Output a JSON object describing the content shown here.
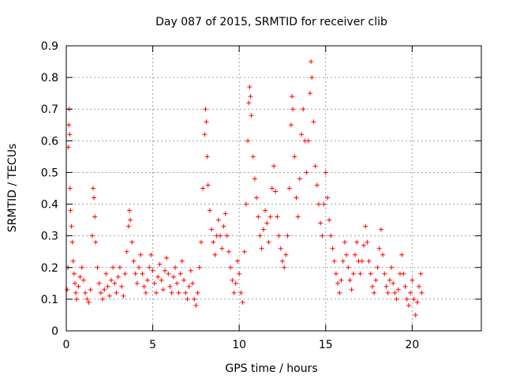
{
  "chart_data": {
    "type": "scatter",
    "title": "Day 087 of 2015, SRMTID for receiver clib",
    "xlabel": "GPS time / hours",
    "ylabel": "SRMTID / TECUs",
    "xlim": [
      0,
      24
    ],
    "ylim": [
      0,
      0.9
    ],
    "xticks": [
      0,
      5,
      10,
      15,
      20
    ],
    "xtick_labels": [
      "0",
      "5",
      "10",
      "15",
      "20"
    ],
    "yticks": [
      0,
      0.1,
      0.2,
      0.3,
      0.4,
      0.5,
      0.6,
      0.7,
      0.8,
      0.9
    ],
    "ytick_labels": [
      "0",
      "0.1",
      "0.2",
      "0.3",
      "0.4",
      "0.5",
      "0.6",
      "0.7",
      "0.8",
      "0.9"
    ],
    "grid": true,
    "marker": "+",
    "marker_color": "#ff0000",
    "series": [
      {
        "name": "SRMTID",
        "points": [
          [
            0.05,
            0.13
          ],
          [
            0.1,
            0.2
          ],
          [
            0.12,
            0.58
          ],
          [
            0.15,
            0.65
          ],
          [
            0.17,
            0.7
          ],
          [
            0.2,
            0.62
          ],
          [
            0.22,
            0.45
          ],
          [
            0.25,
            0.38
          ],
          [
            0.3,
            0.33
          ],
          [
            0.35,
            0.28
          ],
          [
            0.4,
            0.22
          ],
          [
            0.45,
            0.18
          ],
          [
            0.5,
            0.15
          ],
          [
            0.55,
            0.12
          ],
          [
            0.6,
            0.1
          ],
          [
            0.7,
            0.14
          ],
          [
            0.8,
            0.17
          ],
          [
            0.9,
            0.2
          ],
          [
            1.0,
            0.16
          ],
          [
            1.1,
            0.12
          ],
          [
            1.2,
            0.1
          ],
          [
            1.3,
            0.09
          ],
          [
            1.4,
            0.13
          ],
          [
            1.5,
            0.3
          ],
          [
            1.55,
            0.45
          ],
          [
            1.6,
            0.42
          ],
          [
            1.65,
            0.36
          ],
          [
            1.7,
            0.28
          ],
          [
            1.8,
            0.2
          ],
          [
            1.9,
            0.15
          ],
          [
            2.0,
            0.12
          ],
          [
            2.1,
            0.1
          ],
          [
            2.2,
            0.13
          ],
          [
            2.3,
            0.18
          ],
          [
            2.4,
            0.14
          ],
          [
            2.5,
            0.11
          ],
          [
            2.6,
            0.16
          ],
          [
            2.7,
            0.2
          ],
          [
            2.8,
            0.15
          ],
          [
            2.9,
            0.12
          ],
          [
            3.0,
            0.17
          ],
          [
            3.1,
            0.2
          ],
          [
            3.2,
            0.14
          ],
          [
            3.3,
            0.11
          ],
          [
            3.4,
            0.18
          ],
          [
            3.5,
            0.25
          ],
          [
            3.6,
            0.33
          ],
          [
            3.65,
            0.38
          ],
          [
            3.7,
            0.35
          ],
          [
            3.8,
            0.28
          ],
          [
            3.9,
            0.22
          ],
          [
            4.0,
            0.18
          ],
          [
            4.1,
            0.15
          ],
          [
            4.2,
            0.2
          ],
          [
            4.3,
            0.24
          ],
          [
            4.4,
            0.18
          ],
          [
            4.5,
            0.14
          ],
          [
            4.6,
            0.12
          ],
          [
            4.7,
            0.16
          ],
          [
            4.8,
            0.2
          ],
          [
            4.9,
            0.24
          ],
          [
            5.0,
            0.19
          ],
          [
            5.1,
            0.15
          ],
          [
            5.2,
            0.12
          ],
          [
            5.3,
            0.17
          ],
          [
            5.4,
            0.21
          ],
          [
            5.5,
            0.16
          ],
          [
            5.6,
            0.13
          ],
          [
            5.7,
            0.19
          ],
          [
            5.8,
            0.23
          ],
          [
            5.9,
            0.18
          ],
          [
            6.0,
            0.14
          ],
          [
            6.1,
            0.12
          ],
          [
            6.2,
            0.17
          ],
          [
            6.3,
            0.2
          ],
          [
            6.4,
            0.15
          ],
          [
            6.5,
            0.12
          ],
          [
            6.6,
            0.18
          ],
          [
            6.7,
            0.22
          ],
          [
            6.8,
            0.16
          ],
          [
            6.9,
            0.12
          ],
          [
            7.0,
            0.1
          ],
          [
            7.1,
            0.14
          ],
          [
            7.2,
            0.19
          ],
          [
            7.3,
            0.15
          ],
          [
            7.4,
            0.1
          ],
          [
            7.5,
            0.08
          ],
          [
            7.6,
            0.12
          ],
          [
            7.7,
            0.2
          ],
          [
            7.8,
            0.28
          ],
          [
            7.9,
            0.45
          ],
          [
            8.0,
            0.62
          ],
          [
            8.05,
            0.7
          ],
          [
            8.1,
            0.66
          ],
          [
            8.15,
            0.55
          ],
          [
            8.2,
            0.46
          ],
          [
            8.3,
            0.38
          ],
          [
            8.4,
            0.32
          ],
          [
            8.5,
            0.28
          ],
          [
            8.6,
            0.24
          ],
          [
            8.7,
            0.3
          ],
          [
            8.8,
            0.35
          ],
          [
            8.9,
            0.3
          ],
          [
            9.0,
            0.26
          ],
          [
            9.1,
            0.33
          ],
          [
            9.2,
            0.37
          ],
          [
            9.3,
            0.3
          ],
          [
            9.4,
            0.25
          ],
          [
            9.5,
            0.2
          ],
          [
            9.6,
            0.16
          ],
          [
            9.7,
            0.12
          ],
          [
            9.8,
            0.15
          ],
          [
            9.9,
            0.22
          ],
          [
            10.0,
            0.18
          ],
          [
            10.1,
            0.12
          ],
          [
            10.2,
            0.09
          ],
          [
            10.3,
            0.25
          ],
          [
            10.4,
            0.4
          ],
          [
            10.5,
            0.6
          ],
          [
            10.55,
            0.72
          ],
          [
            10.6,
            0.77
          ],
          [
            10.65,
            0.74
          ],
          [
            10.7,
            0.68
          ],
          [
            10.8,
            0.55
          ],
          [
            10.9,
            0.48
          ],
          [
            11.0,
            0.42
          ],
          [
            11.1,
            0.36
          ],
          [
            11.2,
            0.3
          ],
          [
            11.3,
            0.26
          ],
          [
            11.4,
            0.32
          ],
          [
            11.5,
            0.38
          ],
          [
            11.6,
            0.34
          ],
          [
            11.7,
            0.28
          ],
          [
            11.8,
            0.36
          ],
          [
            11.9,
            0.45
          ],
          [
            12.0,
            0.52
          ],
          [
            12.1,
            0.44
          ],
          [
            12.2,
            0.36
          ],
          [
            12.3,
            0.3
          ],
          [
            12.4,
            0.26
          ],
          [
            12.5,
            0.22
          ],
          [
            12.6,
            0.2
          ],
          [
            12.7,
            0.24
          ],
          [
            12.8,
            0.3
          ],
          [
            12.9,
            0.45
          ],
          [
            13.0,
            0.65
          ],
          [
            13.05,
            0.74
          ],
          [
            13.1,
            0.7
          ],
          [
            13.2,
            0.55
          ],
          [
            13.3,
            0.42
          ],
          [
            13.4,
            0.36
          ],
          [
            13.5,
            0.48
          ],
          [
            13.6,
            0.62
          ],
          [
            13.7,
            0.7
          ],
          [
            13.8,
            0.6
          ],
          [
            13.9,
            0.5
          ],
          [
            14.0,
            0.6
          ],
          [
            14.1,
            0.75
          ],
          [
            14.15,
            0.85
          ],
          [
            14.2,
            0.8
          ],
          [
            14.3,
            0.66
          ],
          [
            14.4,
            0.52
          ],
          [
            14.5,
            0.46
          ],
          [
            14.6,
            0.4
          ],
          [
            14.7,
            0.34
          ],
          [
            14.8,
            0.3
          ],
          [
            14.9,
            0.4
          ],
          [
            15.0,
            0.5
          ],
          [
            15.1,
            0.42
          ],
          [
            15.2,
            0.35
          ],
          [
            15.3,
            0.3
          ],
          [
            15.4,
            0.26
          ],
          [
            15.5,
            0.22
          ],
          [
            15.6,
            0.18
          ],
          [
            15.7,
            0.15
          ],
          [
            15.8,
            0.12
          ],
          [
            15.9,
            0.16
          ],
          [
            16.0,
            0.22
          ],
          [
            16.1,
            0.28
          ],
          [
            16.2,
            0.24
          ],
          [
            16.3,
            0.2
          ],
          [
            16.4,
            0.16
          ],
          [
            16.5,
            0.13
          ],
          [
            16.6,
            0.18
          ],
          [
            16.7,
            0.24
          ],
          [
            16.8,
            0.28
          ],
          [
            16.9,
            0.22
          ],
          [
            17.0,
            0.18
          ],
          [
            17.1,
            0.22
          ],
          [
            17.2,
            0.27
          ],
          [
            17.3,
            0.33
          ],
          [
            17.4,
            0.28
          ],
          [
            17.5,
            0.22
          ],
          [
            17.6,
            0.18
          ],
          [
            17.7,
            0.14
          ],
          [
            17.8,
            0.12
          ],
          [
            17.9,
            0.16
          ],
          [
            18.0,
            0.2
          ],
          [
            18.1,
            0.26
          ],
          [
            18.2,
            0.32
          ],
          [
            18.3,
            0.24
          ],
          [
            18.4,
            0.18
          ],
          [
            18.5,
            0.14
          ],
          [
            18.6,
            0.12
          ],
          [
            18.7,
            0.16
          ],
          [
            18.8,
            0.2
          ],
          [
            18.9,
            0.15
          ],
          [
            19.0,
            0.12
          ],
          [
            19.1,
            0.1
          ],
          [
            19.2,
            0.13
          ],
          [
            19.3,
            0.18
          ],
          [
            19.4,
            0.24
          ],
          [
            19.5,
            0.18
          ],
          [
            19.6,
            0.14
          ],
          [
            19.7,
            0.1
          ],
          [
            19.8,
            0.08
          ],
          [
            19.9,
            0.12
          ],
          [
            20.0,
            0.16
          ],
          [
            20.1,
            0.1
          ],
          [
            20.2,
            0.05
          ],
          [
            20.3,
            0.09
          ],
          [
            20.4,
            0.14
          ],
          [
            20.5,
            0.18
          ],
          [
            20.55,
            0.12
          ]
        ]
      }
    ]
  }
}
